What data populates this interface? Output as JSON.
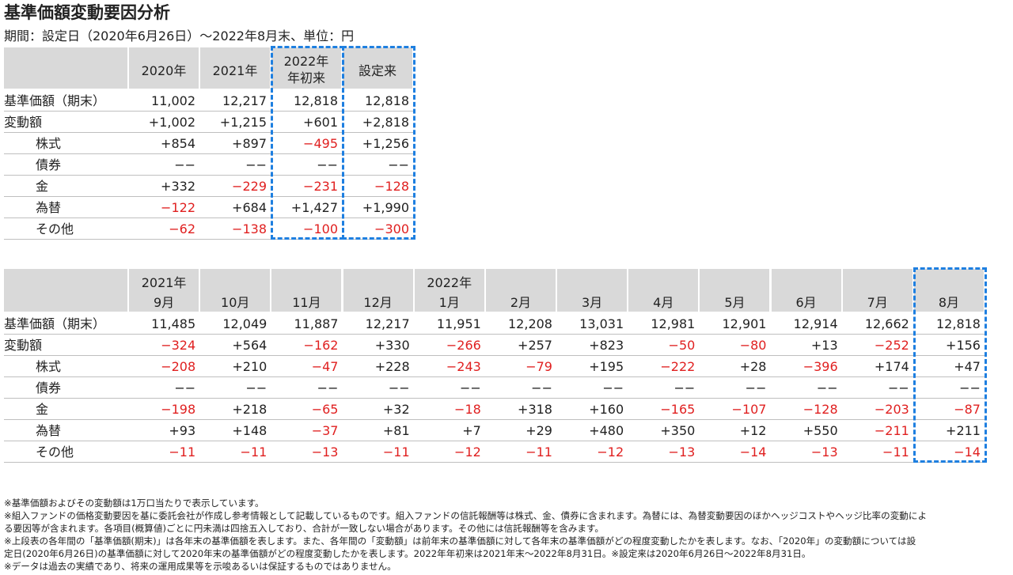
{
  "header": {
    "title": "基準価額変動要因分析",
    "subtitle": "期間：設定日（2020年6月26日）～2022年8月末、単位：円"
  },
  "table1": {
    "columns": [
      [
        "2020年"
      ],
      [
        "2021年"
      ],
      [
        "2022年",
        "年初来"
      ],
      [
        "設定来"
      ]
    ],
    "rows": [
      {
        "label": "基準価額（期末）",
        "values": [
          "11,002",
          "12,217",
          "12,818",
          "12,818"
        ]
      },
      {
        "label": "変動額",
        "values": [
          "+1,002",
          "+1,215",
          "+601",
          "+2,818"
        ]
      },
      {
        "label": "株式",
        "values": [
          "+854",
          "+897",
          "−495",
          "+1,256"
        ]
      },
      {
        "label": "債券",
        "values": [
          "−−",
          "−−",
          "−−",
          "−−"
        ]
      },
      {
        "label": "金",
        "values": [
          "+332",
          "−229",
          "−231",
          "−128"
        ]
      },
      {
        "label": "為替",
        "values": [
          "−122",
          "+684",
          "+1,427",
          "+1,990"
        ]
      },
      {
        "label": "その他",
        "values": [
          "−62",
          "−138",
          "−100",
          "−300"
        ]
      }
    ]
  },
  "table2": {
    "columns": [
      [
        "2021年",
        "9月"
      ],
      [
        "10月"
      ],
      [
        "11月"
      ],
      [
        "12月"
      ],
      [
        "2022年",
        "1月"
      ],
      [
        "2月"
      ],
      [
        "3月"
      ],
      [
        "4月"
      ],
      [
        "5月"
      ],
      [
        "6月"
      ],
      [
        "7月"
      ],
      [
        "8月"
      ]
    ],
    "rows": [
      {
        "label": "基準価額（期末）",
        "values": [
          "11,485",
          "12,049",
          "11,887",
          "12,217",
          "11,951",
          "12,208",
          "13,031",
          "12,981",
          "12,901",
          "12,914",
          "12,662",
          "12,818"
        ]
      },
      {
        "label": "変動額",
        "values": [
          "−324",
          "+564",
          "−162",
          "+330",
          "−266",
          "+257",
          "+823",
          "−50",
          "−80",
          "+13",
          "−252",
          "+156"
        ]
      },
      {
        "label": "株式",
        "values": [
          "−208",
          "+210",
          "−47",
          "+228",
          "−243",
          "−79",
          "+195",
          "−222",
          "+28",
          "−396",
          "+174",
          "+47"
        ]
      },
      {
        "label": "債券",
        "values": [
          "−−",
          "−−",
          "−−",
          "−−",
          "−−",
          "−−",
          "−−",
          "−−",
          "−−",
          "−−",
          "−−",
          "−−"
        ]
      },
      {
        "label": "金",
        "values": [
          "−198",
          "+218",
          "−65",
          "+32",
          "−18",
          "+318",
          "+160",
          "−165",
          "−107",
          "−128",
          "−203",
          "−87"
        ]
      },
      {
        "label": "為替",
        "values": [
          "+93",
          "+148",
          "−37",
          "+81",
          "+7",
          "+29",
          "+480",
          "+350",
          "+12",
          "+550",
          "−211",
          "+211"
        ]
      },
      {
        "label": "その他",
        "values": [
          "−11",
          "−11",
          "−13",
          "−11",
          "−12",
          "−11",
          "−12",
          "−13",
          "−14",
          "−13",
          "−11",
          "−14"
        ]
      }
    ]
  },
  "notes": [
    "※基準価額およびその変動額は1万口当たりで表示しています。",
    "※組入ファンドの価格変動要因を基に委託会社が作成し参考情報として記載しているものです。組入ファンドの信託報酬等は株式、金、債券に含まれます。為替には、為替変動要因のほかヘッジコストやヘッジ比率の変動によ",
    "る要因等が含まれます。各項目(概算値)ごとに円未満は四捨五入しており、合計が一致しない場合があります。その他には信託報酬等を含みます。",
    "※上段表の各年間の「基準価額(期末)」は各年末の基準価額を表します。また、各年間の「変動額」は前年末の基準価額に対して各年末の基準価額がどの程度変動したかを表します。なお、「2020年」の変動額については設",
    "定日(2020年6月26日)の基準価額に対して2020年末の基準価額がどの程度変動したかを表します。2022年年初来は2021年末～2022年8月31日。※設定来は2020年6月26日～2022年8月31日。",
    "※データは過去の実績であり、将来の運用成果等を示唆あるいは保証するものではありません。"
  ]
}
